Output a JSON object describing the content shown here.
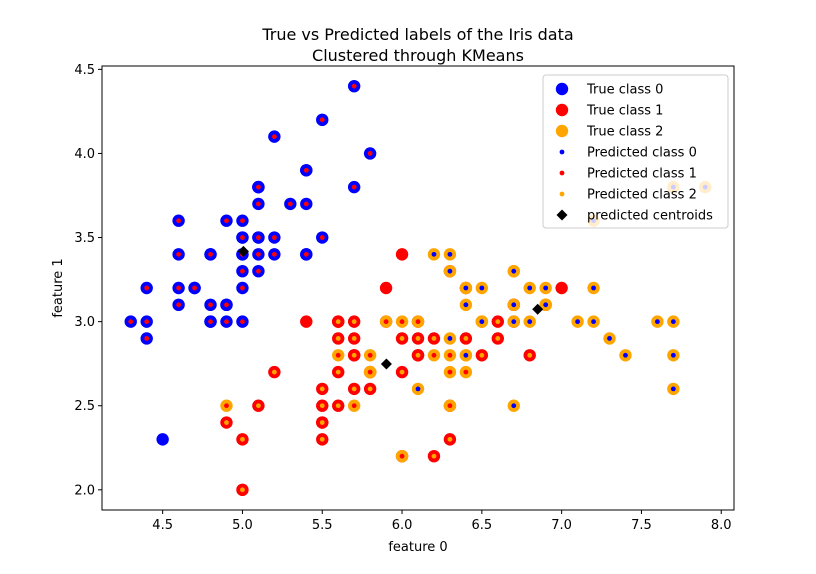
{
  "chart_data": {
    "type": "scatter",
    "title": "True vs Predicted labels of the Iris data",
    "subtitle": "Clustered through KMeans",
    "xlabel": "feature 0",
    "ylabel": "feature 1",
    "xlim": [
      4.12,
      8.08
    ],
    "ylim": [
      1.88,
      4.52
    ],
    "xticks": [
      4.5,
      5.0,
      5.5,
      6.0,
      6.5,
      7.0,
      7.5,
      8.0
    ],
    "yticks": [
      2.0,
      2.5,
      3.0,
      3.5,
      4.0,
      4.5
    ],
    "xtick_labels": [
      "4.5",
      "5.0",
      "5.5",
      "6.0",
      "6.5",
      "7.0",
      "7.5",
      "8.0"
    ],
    "ytick_labels": [
      "2.0",
      "2.5",
      "3.0",
      "3.5",
      "4.0",
      "4.5"
    ],
    "grid": false,
    "legend_position": "top-right",
    "legend": [
      {
        "label": "True class 0",
        "marker": "big-dot",
        "color": "#0000ff"
      },
      {
        "label": "True class 1",
        "marker": "big-dot",
        "color": "#ff0000"
      },
      {
        "label": "True class 2",
        "marker": "big-dot",
        "color": "#ffa500"
      },
      {
        "label": "Predicted class 0",
        "marker": "small-dot",
        "color": "#0000ff"
      },
      {
        "label": "Predicted class 1",
        "marker": "small-dot",
        "color": "#ff0000"
      },
      {
        "label": "Predicted class 2",
        "marker": "small-dot",
        "color": "#ffa500"
      },
      {
        "label": "predicted centroids",
        "marker": "diamond",
        "color": "#000000"
      }
    ],
    "class_colors": [
      "#0000ff",
      "#ff0000",
      "#ffa500"
    ],
    "points": [
      [
        5.1,
        3.5,
        0,
        1
      ],
      [
        4.9,
        3.0,
        0,
        1
      ],
      [
        4.7,
        3.2,
        0,
        1
      ],
      [
        4.6,
        3.1,
        0,
        1
      ],
      [
        5.0,
        3.6,
        0,
        1
      ],
      [
        5.4,
        3.9,
        0,
        1
      ],
      [
        4.6,
        3.4,
        0,
        1
      ],
      [
        5.0,
        3.4,
        0,
        1
      ],
      [
        4.4,
        2.9,
        0,
        1
      ],
      [
        4.9,
        3.1,
        0,
        1
      ],
      [
        5.4,
        3.7,
        0,
        1
      ],
      [
        4.8,
        3.4,
        0,
        1
      ],
      [
        4.8,
        3.0,
        0,
        1
      ],
      [
        4.3,
        3.0,
        0,
        1
      ],
      [
        5.8,
        4.0,
        0,
        1
      ],
      [
        5.7,
        4.4,
        0,
        1
      ],
      [
        5.4,
        3.9,
        0,
        1
      ],
      [
        5.1,
        3.5,
        0,
        1
      ],
      [
        5.7,
        3.8,
        0,
        1
      ],
      [
        5.1,
        3.8,
        0,
        1
      ],
      [
        5.4,
        3.4,
        0,
        1
      ],
      [
        5.1,
        3.7,
        0,
        1
      ],
      [
        4.6,
        3.6,
        0,
        1
      ],
      [
        5.1,
        3.3,
        0,
        1
      ],
      [
        4.8,
        3.4,
        0,
        1
      ],
      [
        5.0,
        3.0,
        0,
        1
      ],
      [
        5.0,
        3.4,
        0,
        1
      ],
      [
        5.2,
        3.5,
        0,
        1
      ],
      [
        5.2,
        3.4,
        0,
        1
      ],
      [
        4.7,
        3.2,
        0,
        1
      ],
      [
        4.8,
        3.1,
        0,
        1
      ],
      [
        5.4,
        3.4,
        0,
        1
      ],
      [
        5.2,
        4.1,
        0,
        1
      ],
      [
        5.5,
        4.2,
        0,
        1
      ],
      [
        4.9,
        3.1,
        0,
        1
      ],
      [
        5.0,
        3.2,
        0,
        1
      ],
      [
        5.5,
        3.5,
        0,
        1
      ],
      [
        4.9,
        3.6,
        0,
        1
      ],
      [
        4.4,
        3.0,
        0,
        1
      ],
      [
        5.1,
        3.4,
        0,
        1
      ],
      [
        5.0,
        3.5,
        0,
        1
      ],
      [
        4.5,
        2.3,
        0,
        0
      ],
      [
        4.4,
        3.2,
        0,
        1
      ],
      [
        5.0,
        3.5,
        0,
        1
      ],
      [
        5.1,
        3.8,
        0,
        1
      ],
      [
        4.8,
        3.0,
        0,
        1
      ],
      [
        5.1,
        3.8,
        0,
        1
      ],
      [
        4.6,
        3.2,
        0,
        1
      ],
      [
        5.3,
        3.7,
        0,
        1
      ],
      [
        5.0,
        3.3,
        0,
        1
      ],
      [
        7.0,
        3.2,
        1,
        1
      ],
      [
        6.4,
        3.2,
        1,
        2
      ],
      [
        6.9,
        3.1,
        1,
        0
      ],
      [
        5.5,
        2.3,
        1,
        2
      ],
      [
        6.5,
        2.8,
        1,
        2
      ],
      [
        5.7,
        2.8,
        1,
        2
      ],
      [
        6.3,
        3.3,
        1,
        2
      ],
      [
        4.9,
        2.4,
        1,
        2
      ],
      [
        6.6,
        2.9,
        1,
        2
      ],
      [
        5.2,
        2.7,
        1,
        2
      ],
      [
        5.0,
        2.0,
        1,
        2
      ],
      [
        5.9,
        3.0,
        1,
        2
      ],
      [
        6.0,
        2.2,
        1,
        2
      ],
      [
        6.1,
        2.9,
        1,
        2
      ],
      [
        5.6,
        2.9,
        1,
        2
      ],
      [
        6.7,
        3.1,
        1,
        2
      ],
      [
        5.6,
        3.0,
        1,
        2
      ],
      [
        5.8,
        2.7,
        1,
        2
      ],
      [
        6.2,
        2.2,
        1,
        2
      ],
      [
        5.6,
        2.5,
        1,
        2
      ],
      [
        5.9,
        3.2,
        1,
        1
      ],
      [
        6.1,
        2.8,
        1,
        2
      ],
      [
        6.3,
        2.5,
        1,
        2
      ],
      [
        6.1,
        2.8,
        1,
        2
      ],
      [
        6.4,
        2.9,
        1,
        2
      ],
      [
        6.6,
        3.0,
        1,
        2
      ],
      [
        6.8,
        2.8,
        1,
        2
      ],
      [
        6.7,
        3.0,
        1,
        0
      ],
      [
        6.0,
        2.9,
        1,
        2
      ],
      [
        5.7,
        2.6,
        1,
        2
      ],
      [
        5.5,
        2.4,
        1,
        2
      ],
      [
        5.5,
        2.4,
        1,
        2
      ],
      [
        5.8,
        2.7,
        1,
        2
      ],
      [
        6.0,
        2.7,
        1,
        2
      ],
      [
        5.4,
        3.0,
        1,
        1
      ],
      [
        6.0,
        3.4,
        1,
        1
      ],
      [
        6.7,
        3.1,
        1,
        2
      ],
      [
        6.3,
        2.3,
        1,
        2
      ],
      [
        5.6,
        3.0,
        1,
        2
      ],
      [
        5.5,
        2.5,
        1,
        2
      ],
      [
        5.5,
        2.6,
        1,
        2
      ],
      [
        6.1,
        3.0,
        1,
        2
      ],
      [
        5.8,
        2.6,
        1,
        2
      ],
      [
        5.0,
        2.3,
        1,
        2
      ],
      [
        5.6,
        2.7,
        1,
        2
      ],
      [
        5.7,
        3.0,
        1,
        2
      ],
      [
        5.7,
        2.9,
        1,
        2
      ],
      [
        6.2,
        2.9,
        1,
        2
      ],
      [
        5.1,
        2.5,
        1,
        2
      ],
      [
        5.7,
        2.8,
        1,
        2
      ],
      [
        6.3,
        3.3,
        2,
        0
      ],
      [
        5.8,
        2.7,
        2,
        1
      ],
      [
        7.1,
        3.0,
        2,
        0
      ],
      [
        6.3,
        2.9,
        2,
        0
      ],
      [
        6.5,
        3.0,
        2,
        0
      ],
      [
        7.6,
        3.0,
        2,
        0
      ],
      [
        4.9,
        2.5,
        2,
        1
      ],
      [
        7.3,
        2.9,
        2,
        0
      ],
      [
        6.7,
        2.5,
        2,
        0
      ],
      [
        7.2,
        3.6,
        2,
        0
      ],
      [
        6.5,
        3.2,
        2,
        0
      ],
      [
        6.4,
        2.7,
        2,
        1
      ],
      [
        6.8,
        3.0,
        2,
        0
      ],
      [
        5.7,
        2.5,
        2,
        1
      ],
      [
        5.8,
        2.8,
        2,
        1
      ],
      [
        6.4,
        3.2,
        2,
        0
      ],
      [
        6.5,
        3.0,
        2,
        0
      ],
      [
        7.7,
        3.8,
        2,
        0
      ],
      [
        7.7,
        2.6,
        2,
        0
      ],
      [
        6.0,
        2.2,
        2,
        1
      ],
      [
        6.9,
        3.2,
        2,
        0
      ],
      [
        5.6,
        2.8,
        2,
        1
      ],
      [
        7.7,
        2.8,
        2,
        0
      ],
      [
        6.3,
        2.7,
        2,
        1
      ],
      [
        6.7,
        3.3,
        2,
        0
      ],
      [
        7.2,
        3.2,
        2,
        0
      ],
      [
        6.2,
        2.8,
        2,
        1
      ],
      [
        6.1,
        3.0,
        2,
        1
      ],
      [
        6.4,
        2.8,
        2,
        0
      ],
      [
        7.2,
        3.0,
        2,
        0
      ],
      [
        7.4,
        2.8,
        2,
        0
      ],
      [
        7.9,
        3.8,
        2,
        0
      ],
      [
        6.4,
        2.8,
        2,
        0
      ],
      [
        6.3,
        2.8,
        2,
        1
      ],
      [
        6.1,
        2.6,
        2,
        0
      ],
      [
        7.7,
        3.0,
        2,
        0
      ],
      [
        6.3,
        3.4,
        2,
        0
      ],
      [
        6.4,
        3.1,
        2,
        0
      ],
      [
        6.0,
        3.0,
        2,
        1
      ],
      [
        6.9,
        3.1,
        2,
        0
      ],
      [
        6.7,
        3.1,
        2,
        0
      ],
      [
        6.9,
        3.1,
        2,
        0
      ],
      [
        5.8,
        2.7,
        2,
        1
      ],
      [
        6.8,
        3.2,
        2,
        0
      ],
      [
        6.7,
        3.3,
        2,
        0
      ],
      [
        6.7,
        3.0,
        2,
        0
      ],
      [
        6.3,
        2.5,
        2,
        1
      ],
      [
        6.5,
        3.0,
        2,
        0
      ],
      [
        6.2,
        3.4,
        2,
        0
      ],
      [
        5.9,
        3.0,
        2,
        1
      ]
    ],
    "centroids": [
      [
        5.006,
        3.418
      ],
      [
        6.85,
        3.074
      ],
      [
        5.902,
        2.748
      ]
    ]
  }
}
